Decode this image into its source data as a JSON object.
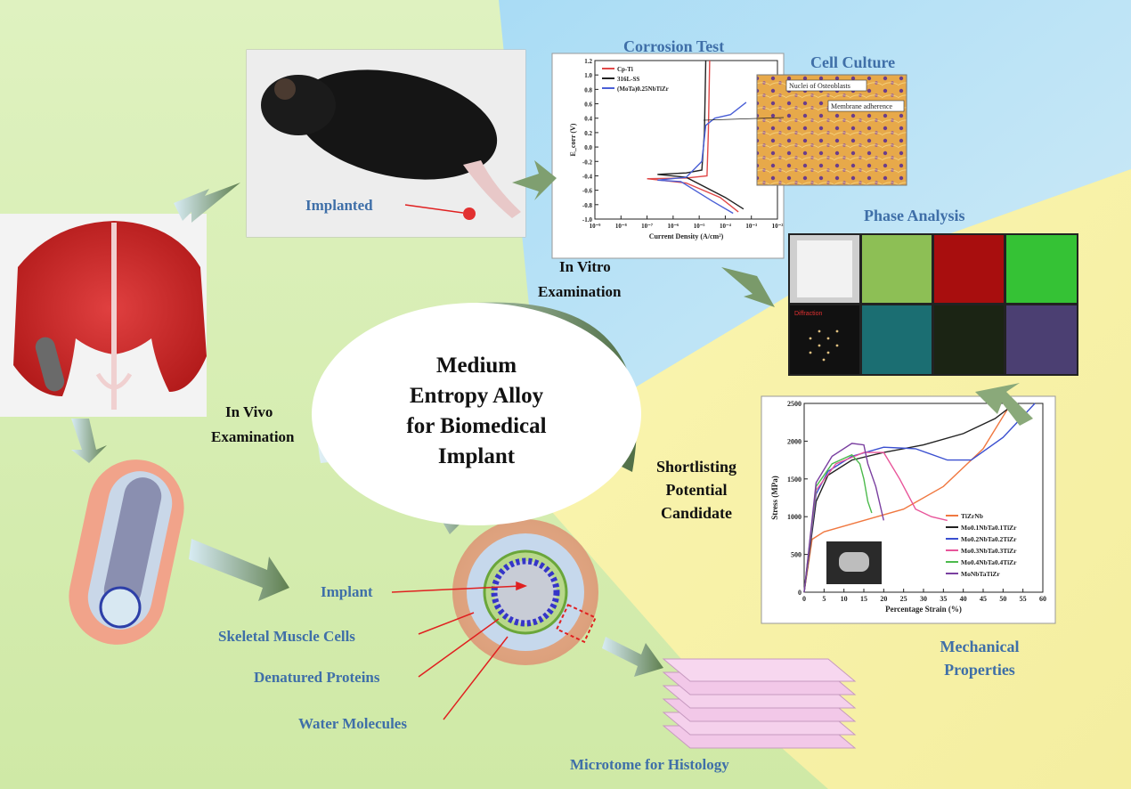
{
  "title": {
    "line1": "Medium",
    "line2": "Entropy Alloy",
    "line3": "for Biomedical",
    "line4": "Implant"
  },
  "labels": {
    "corrosion_test": "Corrosion Test",
    "cell_culture": "Cell Culture",
    "phase_analysis": "Phase Analysis",
    "implanted": "Implanted",
    "in_vitro_line1": "In Vitro",
    "in_vitro_line2": "Examination",
    "in_vivo_line1": "In Vivo",
    "in_vivo_line2": "Examination",
    "shortlisting_line1": "Shortlisting",
    "shortlisting_line2": "Potential",
    "shortlisting_line3": "Candidate",
    "mechanical_line1": "Mechanical",
    "mechanical_line2": "Properties",
    "implant": "Implant",
    "skeletal_muscle_cells": "Skeletal Muscle Cells",
    "denatured_proteins": "Denatured Proteins",
    "water_molecules": "Water Molecules",
    "microtome": "Microtome for Histology"
  },
  "cell_culture_annotations": {
    "nuclei": "Nuclei of Osteoblasts",
    "membrane": "Membrane adherence"
  },
  "phase_grid_label": "Diffraction",
  "colors": {
    "bg_green": "#d9f0b8",
    "bg_blue": "#bfe4f5",
    "bg_yellow": "#f6f2a6",
    "label_blue": "#3f6fa8",
    "arrow_green": "#6a8a5a"
  },
  "chart_data": [
    {
      "type": "line",
      "title": "Corrosion Test",
      "xlabel": "Current Density (A/cm²)",
      "ylabel": "E_corr (V)",
      "x_scale": "log",
      "xlim": [
        -9,
        -2
      ],
      "ylim": [
        -1.0,
        1.2
      ],
      "x_tick_labels": [
        "10⁻⁹",
        "10⁻⁸",
        "10⁻⁷",
        "10⁻⁶",
        "10⁻⁵",
        "10⁻⁴",
        "10⁻³",
        "10⁻²"
      ],
      "y_ticks": [
        -1.0,
        -0.8,
        -0.6,
        -0.4,
        -0.2,
        0.0,
        0.2,
        0.4,
        0.6,
        0.8,
        1.0,
        1.2
      ],
      "series": [
        {
          "name": "Cp-Ti",
          "color": "#e04848",
          "points": [
            [
              -3.5,
              -0.9
            ],
            [
              -4.2,
              -0.7
            ],
            [
              -5.5,
              -0.5
            ],
            [
              -7.0,
              -0.44
            ],
            [
              -5.5,
              -0.43
            ],
            [
              -4.7,
              -0.4
            ],
            [
              -4.65,
              0.2
            ],
            [
              -4.6,
              1.2
            ]
          ]
        },
        {
          "name": "316L-SS",
          "color": "#222222",
          "points": [
            [
              -3.3,
              -0.86
            ],
            [
              -4.0,
              -0.7
            ],
            [
              -5.5,
              -0.42
            ],
            [
              -6.6,
              -0.38
            ],
            [
              -5.5,
              -0.36
            ],
            [
              -4.9,
              -0.32
            ],
            [
              -4.8,
              0.2
            ],
            [
              -4.75,
              1.2
            ]
          ]
        },
        {
          "name": "(MoTa)0.25NbTiZr",
          "color": "#4a5fd6",
          "points": [
            [
              -3.7,
              -0.92
            ],
            [
              -4.5,
              -0.75
            ],
            [
              -5.7,
              -0.48
            ],
            [
              -6.6,
              -0.46
            ],
            [
              -5.5,
              -0.42
            ],
            [
              -4.9,
              -0.2
            ],
            [
              -4.75,
              0.3
            ],
            [
              -4.4,
              0.4
            ],
            [
              -3.8,
              0.45
            ],
            [
              -3.2,
              0.62
            ]
          ]
        }
      ]
    },
    {
      "type": "line",
      "title": "Mechanical Properties",
      "xlabel": "Percentage Strain (%)",
      "ylabel": "Stress (MPa)",
      "xlim": [
        0,
        60
      ],
      "ylim": [
        0,
        2500
      ],
      "x_ticks": [
        0,
        5,
        10,
        15,
        20,
        25,
        30,
        35,
        40,
        45,
        50,
        55,
        60
      ],
      "y_ticks": [
        0,
        500,
        1000,
        1500,
        2000,
        2500
      ],
      "series": [
        {
          "name": "TiZrNb",
          "color": "#f07840",
          "points": [
            [
              0,
              0
            ],
            [
              2,
              700
            ],
            [
              5,
              800
            ],
            [
              15,
              950
            ],
            [
              25,
              1100
            ],
            [
              35,
              1400
            ],
            [
              45,
              1900
            ],
            [
              52,
              2500
            ]
          ]
        },
        {
          "name": "Mo0.1NbTa0.1TiZr",
          "color": "#222222",
          "points": [
            [
              0,
              0
            ],
            [
              3,
              1200
            ],
            [
              6,
              1550
            ],
            [
              12,
              1750
            ],
            [
              20,
              1850
            ],
            [
              30,
              1950
            ],
            [
              40,
              2100
            ],
            [
              48,
              2300
            ],
            [
              53,
              2500
            ]
          ]
        },
        {
          "name": "Mo0.2NbTa0.2TiZr",
          "color": "#3a4fd0",
          "points": [
            [
              0,
              0
            ],
            [
              3,
              1300
            ],
            [
              6,
              1600
            ],
            [
              12,
              1800
            ],
            [
              20,
              1920
            ],
            [
              28,
              1900
            ],
            [
              36,
              1750
            ],
            [
              42,
              1750
            ],
            [
              50,
              2050
            ],
            [
              58,
              2500
            ]
          ]
        },
        {
          "name": "Mo0.3NbTa0.3TiZr",
          "color": "#e8559a",
          "points": [
            [
              0,
              0
            ],
            [
              3,
              1350
            ],
            [
              8,
              1700
            ],
            [
              15,
              1850
            ],
            [
              20,
              1850
            ],
            [
              24,
              1500
            ],
            [
              28,
              1100
            ],
            [
              32,
              1000
            ],
            [
              36,
              950
            ]
          ]
        },
        {
          "name": "Mo0.4NbTa0.4TiZr",
          "color": "#4cba4c",
          "points": [
            [
              0,
              0
            ],
            [
              3,
              1400
            ],
            [
              7,
              1700
            ],
            [
              12,
              1820
            ],
            [
              14,
              1700
            ],
            [
              15,
              1500
            ],
            [
              16,
              1200
            ],
            [
              17,
              1050
            ]
          ]
        },
        {
          "name": "MoNbTaTiZr",
          "color": "#7a3fa0",
          "points": [
            [
              0,
              0
            ],
            [
              3,
              1450
            ],
            [
              7,
              1800
            ],
            [
              12,
              1970
            ],
            [
              15,
              1950
            ],
            [
              16,
              1700
            ],
            [
              18,
              1400
            ],
            [
              20,
              950
            ]
          ]
        }
      ]
    }
  ]
}
